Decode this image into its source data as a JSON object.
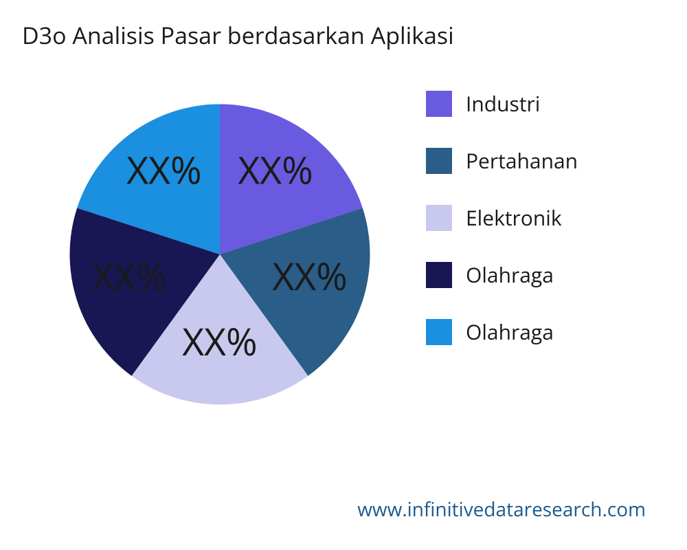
{
  "title": "D3o Analisis Pasar berdasarkan Aplikasi",
  "chart": {
    "type": "pie",
    "background_color": "#ffffff",
    "label_fontsize": 24,
    "label_color": "#1a1a1a",
    "start_angle_deg": 90,
    "slices": [
      {
        "name": "Industri",
        "value": 20,
        "color": "#6a5ae0",
        "label": "XX%"
      },
      {
        "name": "Pertahanan",
        "value": 20,
        "color": "#2a5d87",
        "label": "XX%"
      },
      {
        "name": "Elektronik",
        "value": 20,
        "color": "#c9c9ef",
        "label": "XX%"
      },
      {
        "name": "Olahraga",
        "value": 20,
        "color": "#191654",
        "label": "XX%"
      },
      {
        "name": "Olahraga",
        "value": 20,
        "color": "#1b8fe0",
        "label": "XX%"
      }
    ]
  },
  "legend": {
    "swatch_size": 38,
    "label_fontsize": 30,
    "label_color": "#1a1a1a",
    "items": [
      {
        "label": "Industri",
        "color": "#6a5ae0"
      },
      {
        "label": "Pertahanan",
        "color": "#2a5d87"
      },
      {
        "label": "Elektronik",
        "color": "#c9c9ef"
      },
      {
        "label": "Olahraga",
        "color": "#191654"
      },
      {
        "label": "Olahraga",
        "color": "#1b8fe0"
      }
    ]
  },
  "footer": {
    "text": "www.infinitivedataresearch.com",
    "color": "#1e5a8e",
    "fontsize": 28
  }
}
